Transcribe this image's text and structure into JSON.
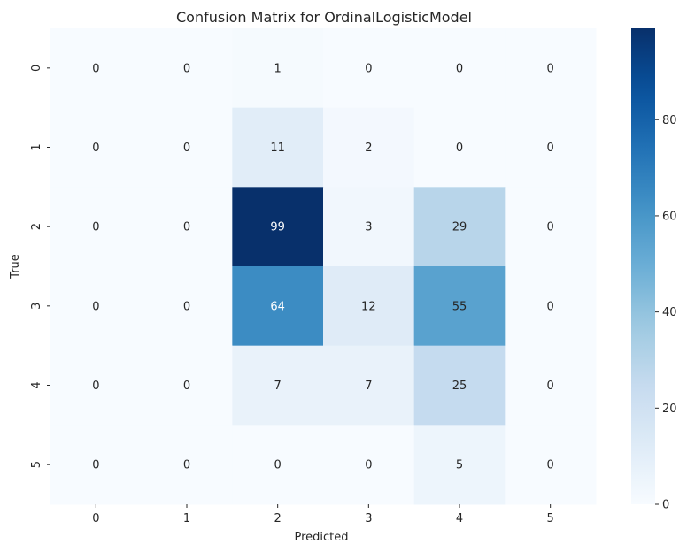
{
  "chart_data": {
    "type": "heatmap",
    "title": "Confusion Matrix for OrdinalLogisticModel",
    "xlabel": "Predicted",
    "ylabel": "True",
    "x_categories": [
      "0",
      "1",
      "2",
      "3",
      "4",
      "5"
    ],
    "y_categories": [
      "0",
      "1",
      "2",
      "3",
      "4",
      "5"
    ],
    "values": [
      [
        0,
        0,
        1,
        0,
        0,
        0
      ],
      [
        0,
        0,
        11,
        2,
        0,
        0
      ],
      [
        0,
        0,
        99,
        3,
        29,
        0
      ],
      [
        0,
        0,
        64,
        12,
        55,
        0
      ],
      [
        0,
        0,
        7,
        7,
        25,
        0
      ],
      [
        0,
        0,
        0,
        0,
        5,
        0
      ]
    ],
    "colormap": "Blues",
    "color_min": "#f7fbff",
    "color_max": "#08306b",
    "vmin": 0,
    "vmax": 99,
    "colorbar_ticks": [
      "0",
      "20",
      "40",
      "60",
      "80"
    ],
    "colorbar_tick_values": [
      0,
      20,
      40,
      60,
      80
    ]
  }
}
